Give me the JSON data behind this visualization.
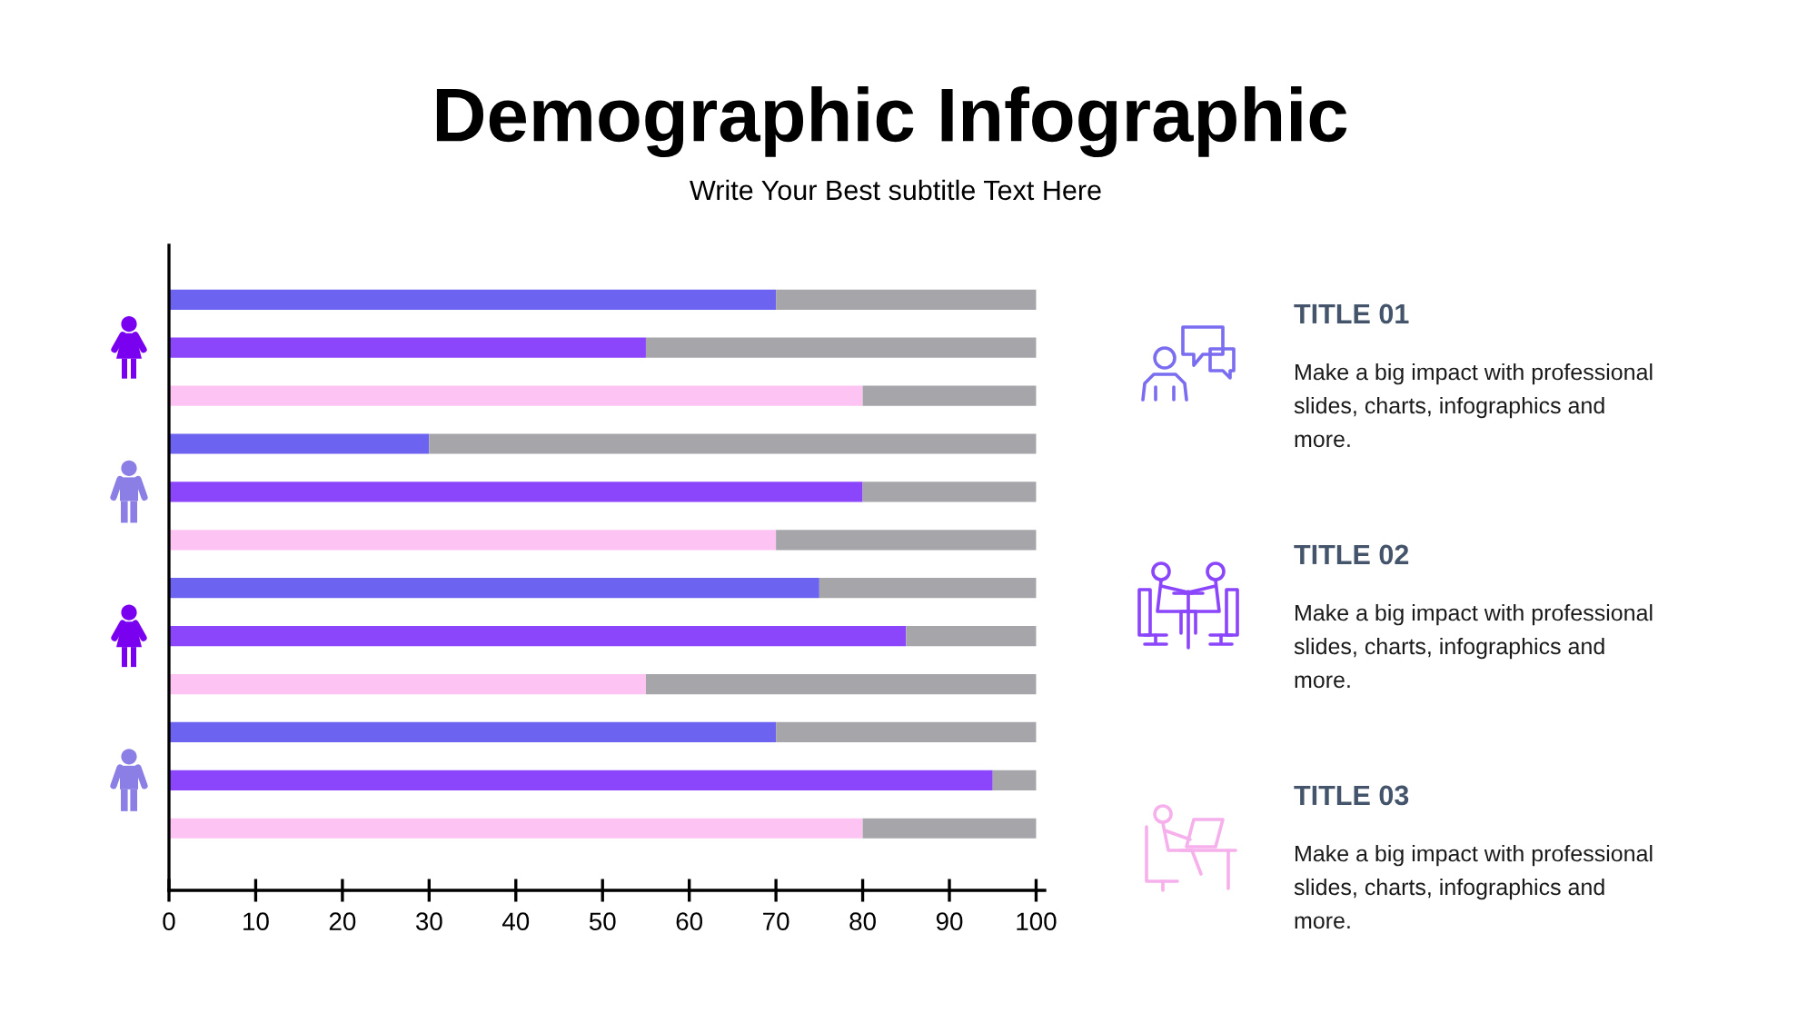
{
  "chart_data": [
    {
      "type": "bar",
      "title": "Demographic Infographic",
      "subtitle": "Write Your Best subtitle Text Here",
      "orientation": "horizontal",
      "stacked": true,
      "categories": [
        null,
        null,
        null,
        null,
        null,
        null,
        null,
        null,
        null,
        null,
        null,
        null
      ],
      "series": [
        {
          "colors": [
            "#6c63f0",
            "#8b45fb",
            "#fdc4f3",
            "#6c63f0",
            "#8b45fb",
            "#fdc4f3",
            "#6c63f0",
            "#8b45fb",
            "#fdc4f3",
            "#6c63f0",
            "#8b45fb",
            "#fdc4f3"
          ],
          "values": [
            70,
            55,
            80,
            30,
            80,
            70,
            75,
            85,
            55,
            70,
            95,
            80
          ]
        },
        {
          "color": "#a6a6aa",
          "values": [
            30,
            45,
            20,
            70,
            20,
            30,
            25,
            15,
            45,
            30,
            5,
            20
          ]
        }
      ],
      "xlim": [
        0,
        101
      ],
      "xticks": [
        0,
        10,
        20,
        30,
        40,
        50,
        60,
        70,
        80,
        90,
        100
      ],
      "tick_labels": "x",
      "grid": false
    },
    {
      "type": "other",
      "annotations": [
        "TITLE 01",
        "Make a big impact with professional slides, charts, infographics and more.",
        "TITLE 02",
        "Make a big impact with professional slides, charts, infographics and more.",
        "TITLE 03",
        "Make a big impact with professional slides, charts, infographics and more."
      ]
    }
  ]
}
